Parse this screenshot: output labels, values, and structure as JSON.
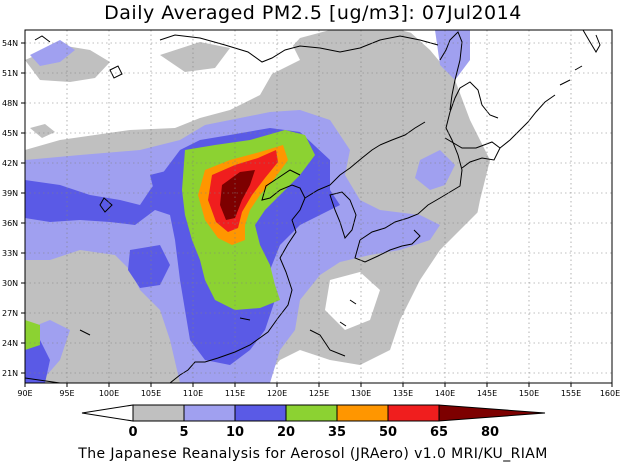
{
  "title": "Daily Averaged PM2.5 [ug/m3]: 07Jul2014",
  "footer": "The Japanese Reanalysis for Aerosol (JRAero) v1.0 MRI/KU_RIAM",
  "map": {
    "lon_range": [
      90,
      160
    ],
    "lat_range": [
      20,
      55
    ],
    "lon_ticks": [
      "90E",
      "95E",
      "100E",
      "105E",
      "110E",
      "115E",
      "120E",
      "125E",
      "130E",
      "135E",
      "140E",
      "145E",
      "150E",
      "155E",
      "160E"
    ],
    "lat_ticks": [
      "21N",
      "24N",
      "27N",
      "30N",
      "33N",
      "36N",
      "39N",
      "42N",
      "45N",
      "48N",
      "51N",
      "54N"
    ]
  },
  "colorbar": {
    "labels": [
      "0",
      "5",
      "10",
      "20",
      "35",
      "50",
      "65",
      "80"
    ],
    "colors": {
      "lt5": "#ffffff",
      "5-10": "#c0c0c0",
      "10-20": "#a0a0f0",
      "20-35": "#5a5ae6",
      "35-50": "#8cd232",
      "50-65": "#ff9600",
      "65-80": "#f01e1e",
      "gt80": "#7d0000"
    }
  }
}
